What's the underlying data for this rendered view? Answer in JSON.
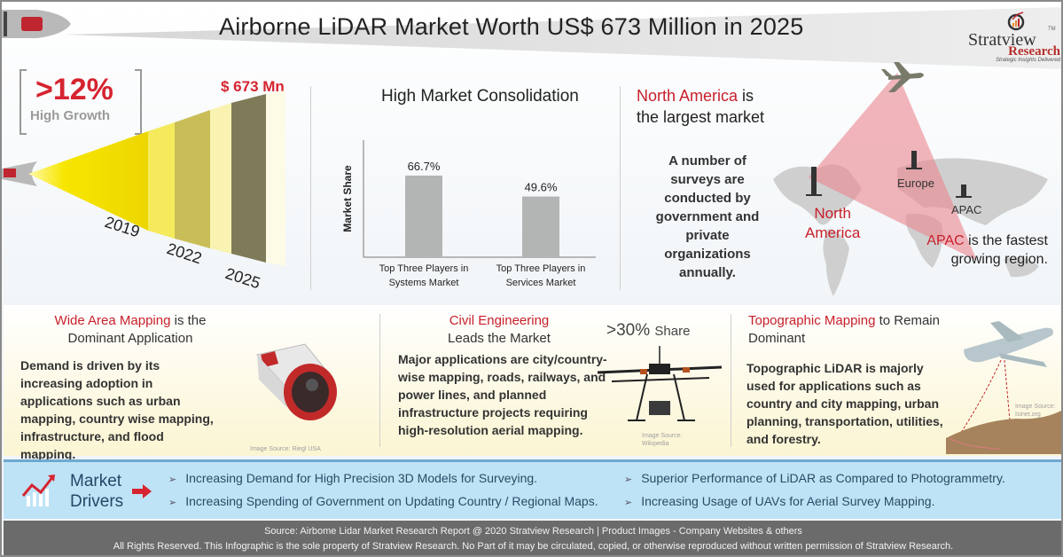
{
  "header": {
    "title": "Airborne LiDAR Market Worth US$ 673 Million in 2025",
    "logo": {
      "name": "Stratview",
      "tm": "TM",
      "sub": "Research",
      "tagline": "Strategic Insights Delivered"
    }
  },
  "growth": {
    "value": ">12%",
    "label": "High Growth",
    "market_size": "$ 673 Mn",
    "years": [
      "2019",
      "2022",
      "2025"
    ]
  },
  "consolidation": {
    "title": "High Market Consolidation"
  },
  "chart_data": {
    "type": "bar",
    "title": "High Market Consolidation",
    "xlabel": "",
    "ylabel": "Market Share",
    "categories": [
      "Top Three Players in Systems Market",
      "Top Three Players in Services Market"
    ],
    "category_lines": [
      [
        "Top Three Players in",
        "Systems Market"
      ],
      [
        "Top Three Players in",
        "Services Market"
      ]
    ],
    "values": [
      66.7,
      49.6
    ],
    "value_labels": [
      "66.7%",
      "49.6%"
    ],
    "ylim": [
      0,
      100
    ],
    "grid": false,
    "bar_color": "#b3b5b5"
  },
  "regions": {
    "title_highlight": "North America",
    "title_rest": " is",
    "title_line2": "the largest market",
    "body": "A number of surveys are conducted by government and private organizations annually.",
    "map_labels": {
      "europe": "Europe",
      "apac": "APAC",
      "north_america_line1": "North",
      "north_america_line2": "America"
    },
    "apac_highlight": "APAC",
    "apac_rest": " is the fastest",
    "apac_line2": "growing region."
  },
  "sections": {
    "wide_area": {
      "title_highlight": "Wide Area Mapping",
      "title_rest": " is the",
      "title_line2": "Dominant Application",
      "body": "Demand is driven by its increasing adoption in applications such as urban mapping, country wise mapping, infrastructure, and flood mapping.",
      "image_source": "Image Source: Riegl USA"
    },
    "civil": {
      "title_highlight": "Civil Engineering",
      "title_line2": "Leads the Market",
      "share_value": ">30%",
      "share_label": "Share",
      "body": "Major applications are city/country-wise mapping, roads, railways, and power lines, and planned infrastructure projects requiring high-resolution aerial mapping.",
      "image_source_1": "Image Source:",
      "image_source_2": "Wikipedia"
    },
    "topographic": {
      "title_highlight": "Topographic Mapping",
      "title_rest": " to Remain",
      "title_line2": "Dominant",
      "body": "Topographic LiDAR is majorly used for applications such as country and city mapping, urban planning, transportation, utilities, and forestry.",
      "image_source_1": "Image Source:",
      "image_source_2": "Isinet.org"
    }
  },
  "drivers": {
    "title_line1": "Market",
    "title_line2": "Drivers",
    "items": [
      "Increasing Demand for High Precision 3D Models for Surveying.",
      "Increasing Spending of Government on Updating Country / Regional Maps.",
      "Superior Performance of LiDAR as Compared to Photogrammetry.",
      "Increasing Usage of UAVs for Aerial Survey Mapping."
    ]
  },
  "footer": {
    "line1": "Source: Airbome Lidar Market Research Report @ 2020 Stratview Research | Product Images  - Company Websites & others",
    "line2": "All Rights Reserved. This Infographic is the sole property of Stratview Research. No Part of it may be circulated, copied, or otherwise reproduced without written permission of Stratview Research."
  },
  "colors": {
    "accent_red": "#c8202b",
    "drivers_bg": "#bfe3f6",
    "footer_bg": "#6b6b6b"
  }
}
